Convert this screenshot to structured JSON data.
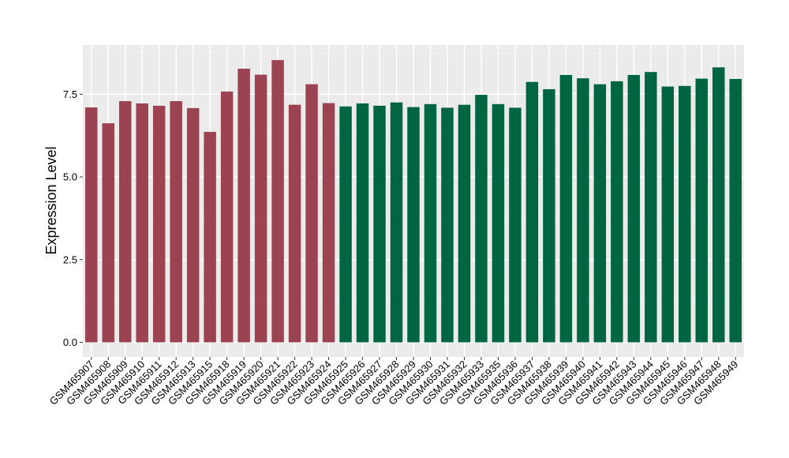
{
  "chart_data": {
    "type": "bar",
    "title": "",
    "xlabel": "",
    "ylabel": "Expression Level",
    "ylim": [
      0,
      9
    ],
    "yticks": [
      0,
      2.5,
      5,
      7.5
    ],
    "ytick_labels": [
      "0.0",
      "2.5",
      "5.0",
      "7.5"
    ],
    "grid": true,
    "colors": {
      "group1": "#9b4350",
      "group2": "#006642",
      "panel": "#ebebeb",
      "gridline": "#ffffff"
    },
    "categories": [
      "GSM465907",
      "GSM465908",
      "GSM465909",
      "GSM465910",
      "GSM465911",
      "GSM465912",
      "GSM465913",
      "GSM465915",
      "GSM465918",
      "GSM465919",
      "GSM465920",
      "GSM465921",
      "GSM465922",
      "GSM465923",
      "GSM465924",
      "GSM465925",
      "GSM465926",
      "GSM465927",
      "GSM465928",
      "GSM465929",
      "GSM465930",
      "GSM465931",
      "GSM465932",
      "GSM465933",
      "GSM465935",
      "GSM465936",
      "GSM465937",
      "GSM465938",
      "GSM465939",
      "GSM465940",
      "GSM465941",
      "GSM465942",
      "GSM465943",
      "GSM465944",
      "GSM465945",
      "GSM465946",
      "GSM465947",
      "GSM465948",
      "GSM465949"
    ],
    "values": [
      7.1,
      6.62,
      7.29,
      7.22,
      7.15,
      7.29,
      7.08,
      6.36,
      7.58,
      8.27,
      8.09,
      8.53,
      7.18,
      7.8,
      7.23,
      7.13,
      7.22,
      7.15,
      7.25,
      7.11,
      7.2,
      7.09,
      7.18,
      7.48,
      7.2,
      7.09,
      7.87,
      7.65,
      8.08,
      7.98,
      7.8,
      7.89,
      8.08,
      8.17,
      7.73,
      7.75,
      7.97,
      8.31,
      7.96
    ],
    "groups": [
      "group1",
      "group1",
      "group1",
      "group1",
      "group1",
      "group1",
      "group1",
      "group1",
      "group1",
      "group1",
      "group1",
      "group1",
      "group1",
      "group1",
      "group1",
      "group2",
      "group2",
      "group2",
      "group2",
      "group2",
      "group2",
      "group2",
      "group2",
      "group2",
      "group2",
      "group2",
      "group2",
      "group2",
      "group2",
      "group2",
      "group2",
      "group2",
      "group2",
      "group2",
      "group2",
      "group2",
      "group2",
      "group2",
      "group2"
    ]
  }
}
